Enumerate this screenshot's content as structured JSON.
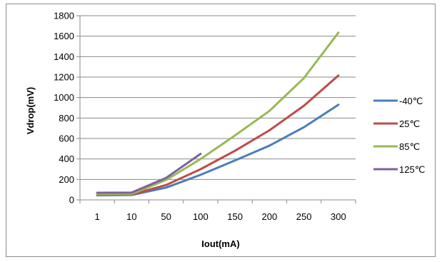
{
  "chart_data": {
    "type": "line",
    "categories": [
      "1",
      "10",
      "50",
      "100",
      "150",
      "200",
      "250",
      "300"
    ],
    "xlabel": "Iout(mA)",
    "ylabel": "Vdrop(mV)",
    "ylim": [
      0,
      1800
    ],
    "yticks": [
      0,
      200,
      400,
      600,
      800,
      1000,
      1200,
      1400,
      1600,
      1800
    ],
    "grid": "horizontal",
    "legend": "right",
    "series": [
      {
        "name": "-40℃",
        "color": "#4a7ebb",
        "values": [
          45,
          48,
          120,
          245,
          385,
          530,
          710,
          930
        ]
      },
      {
        "name": "25℃",
        "color": "#be4b48",
        "values": [
          50,
          52,
          145,
          300,
          480,
          680,
          920,
          1215
        ]
      },
      {
        "name": "85℃",
        "color": "#98b954",
        "values": [
          55,
          58,
          195,
          400,
          630,
          870,
          1190,
          1635
        ]
      },
      {
        "name": "125℃",
        "color": "#7d60a0",
        "values": [
          70,
          72,
          215,
          450,
          null,
          null,
          null,
          null
        ]
      }
    ]
  }
}
